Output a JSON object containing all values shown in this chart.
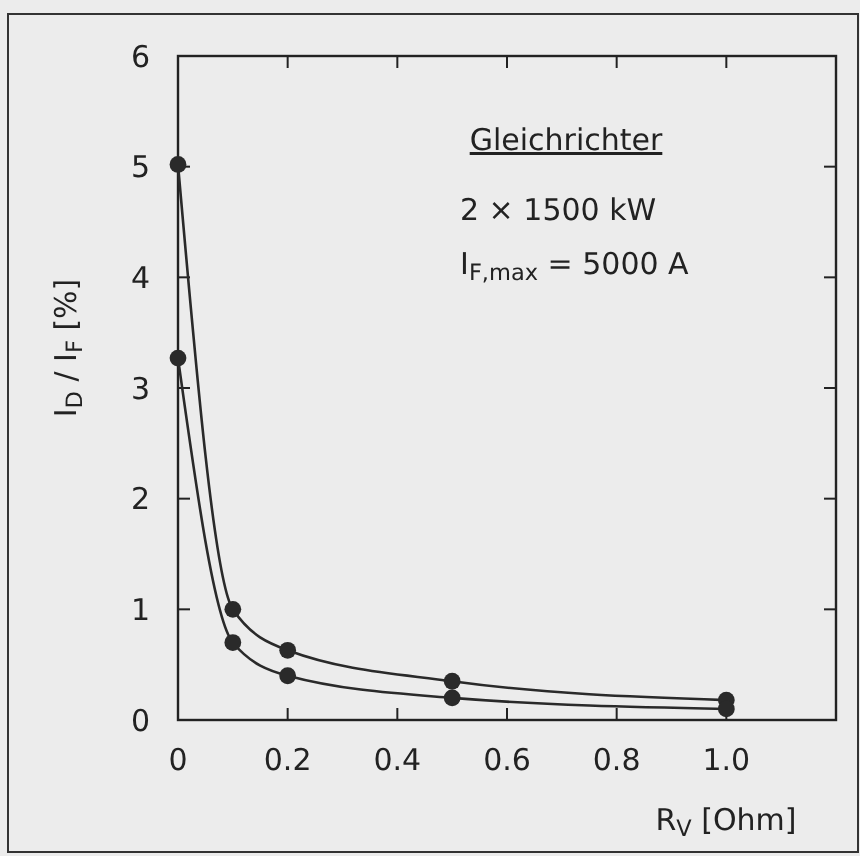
{
  "chart_data": {
    "type": "line",
    "xlabel": "R$_{V}$ [Ohm]",
    "ylabel": "I$_{D}$ / I$_{F}$ [%]",
    "annotations": [
      "Gleichrichter",
      "2 × 1500  kW",
      "I$_{F,max}$ = 5000  A"
    ],
    "xlim": [
      0,
      1.2
    ],
    "xticks": [
      0,
      0.2,
      0.4,
      0.6,
      0.8,
      {
        "value": 1.0,
        "label": "1.0"
      }
    ],
    "ylim": [
      0,
      6
    ],
    "yticks": [
      0,
      1,
      2,
      3,
      4,
      5,
      6
    ],
    "grid": false,
    "marker": "circle",
    "line_style": "solid",
    "series": [
      {
        "color": "#2a2a2a",
        "x": [
          0,
          0.1,
          0.2,
          0.5,
          1.0
        ],
        "values": [
          5.02,
          1.0,
          0.63,
          0.35,
          0.18
        ]
      },
      {
        "color": "#2a2a2a",
        "x": [
          0,
          0.1,
          0.2,
          0.5,
          1.0
        ],
        "values": [
          3.27,
          0.7,
          0.4,
          0.2,
          0.1
        ]
      }
    ]
  }
}
